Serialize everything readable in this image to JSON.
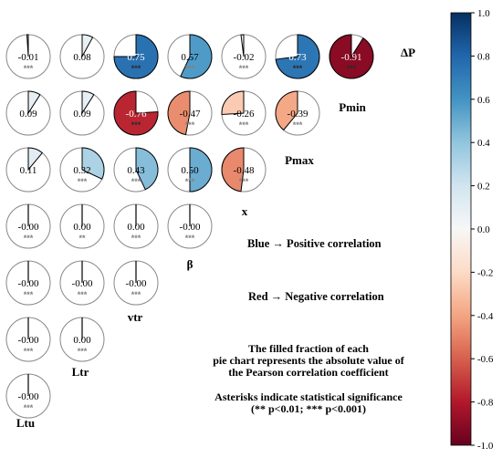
{
  "chart_data": {
    "type": "pie-correlation-matrix",
    "variables": [
      "ΔP",
      "Pmin",
      "Pmax",
      "x",
      "β",
      "vtr",
      "Ltr",
      "Ltu"
    ],
    "cells": [
      {
        "r": 0,
        "c": 0,
        "value": -0.01,
        "label": "-0.01",
        "sig": "***"
      },
      {
        "r": 0,
        "c": 1,
        "value": 0.08,
        "label": "0.08",
        "sig": ""
      },
      {
        "r": 0,
        "c": 2,
        "value": 0.75,
        "label": "0.75",
        "sig": "***"
      },
      {
        "r": 0,
        "c": 3,
        "value": 0.57,
        "label": "0.57",
        "sig": "***"
      },
      {
        "r": 0,
        "c": 4,
        "value": -0.02,
        "label": "-0.02",
        "sig": "***"
      },
      {
        "r": 0,
        "c": 5,
        "value": 0.73,
        "label": "0.73",
        "sig": "***"
      },
      {
        "r": 0,
        "c": 6,
        "value": -0.91,
        "label": "-0.91",
        "sig": "***"
      },
      {
        "r": 1,
        "c": 0,
        "value": 0.09,
        "label": "0.09",
        "sig": ""
      },
      {
        "r": 1,
        "c": 1,
        "value": 0.09,
        "label": "0.09",
        "sig": ""
      },
      {
        "r": 1,
        "c": 2,
        "value": -0.76,
        "label": "-0.76",
        "sig": "***"
      },
      {
        "r": 1,
        "c": 3,
        "value": -0.47,
        "label": "-0.47",
        "sig": "***"
      },
      {
        "r": 1,
        "c": 4,
        "value": -0.26,
        "label": "-0.26",
        "sig": "***"
      },
      {
        "r": 1,
        "c": 5,
        "value": -0.39,
        "label": "-0.39",
        "sig": "***"
      },
      {
        "r": 2,
        "c": 0,
        "value": 0.11,
        "label": "0.11",
        "sig": ""
      },
      {
        "r": 2,
        "c": 1,
        "value": 0.32,
        "label": "0.32",
        "sig": "***"
      },
      {
        "r": 2,
        "c": 2,
        "value": 0.43,
        "label": "0.43",
        "sig": "***"
      },
      {
        "r": 2,
        "c": 3,
        "value": 0.5,
        "label": "0.50",
        "sig": "***"
      },
      {
        "r": 2,
        "c": 4,
        "value": -0.48,
        "label": "-0.48",
        "sig": "***"
      },
      {
        "r": 3,
        "c": 0,
        "value": -0.0,
        "label": "-0.00",
        "sig": "***"
      },
      {
        "r": 3,
        "c": 1,
        "value": 0.0,
        "label": "0.00",
        "sig": "**"
      },
      {
        "r": 3,
        "c": 2,
        "value": 0.0,
        "label": "0.00",
        "sig": "***"
      },
      {
        "r": 3,
        "c": 3,
        "value": -0.0,
        "label": "-0.00",
        "sig": "***"
      },
      {
        "r": 4,
        "c": 0,
        "value": -0.0,
        "label": "-0.00",
        "sig": "***"
      },
      {
        "r": 4,
        "c": 1,
        "value": -0.0,
        "label": "-0.00",
        "sig": "***"
      },
      {
        "r": 4,
        "c": 2,
        "value": -0.0,
        "label": "-0.00",
        "sig": "***"
      },
      {
        "r": 5,
        "c": 0,
        "value": -0.0,
        "label": "-0.00",
        "sig": "***"
      },
      {
        "r": 5,
        "c": 1,
        "value": 0.0,
        "label": "0.00",
        "sig": "***"
      },
      {
        "r": 6,
        "c": 0,
        "value": -0.0,
        "label": "-0.00",
        "sig": "***"
      }
    ],
    "colorbar": {
      "min": -1.0,
      "max": 1.0,
      "ticks": [
        1.0,
        0.8,
        0.6,
        0.4,
        0.2,
        0.0,
        -0.2,
        -0.4,
        -0.6,
        -0.8,
        -1.0
      ],
      "tick_labels": [
        "1.0",
        "0.8",
        "0.6",
        "0.4",
        "0.2",
        "0.0",
        "-0.2",
        "-0.4",
        "-0.6",
        "-0.8",
        "-1.0"
      ],
      "colormap": "RdBu"
    },
    "legend": {
      "positive": "Blue → Positive correlation",
      "negative": "Red → Negative correlation",
      "positive_color": "#1010c8",
      "negative_color": "#b8401c"
    },
    "notes": [
      "The filled fraction of each",
      "pie chart represents the absolute value of",
      "the Pearson correlation coefficient",
      "Asterisks indicate statistical significance",
      "(** p<0.01; *** p<0.001)"
    ]
  }
}
